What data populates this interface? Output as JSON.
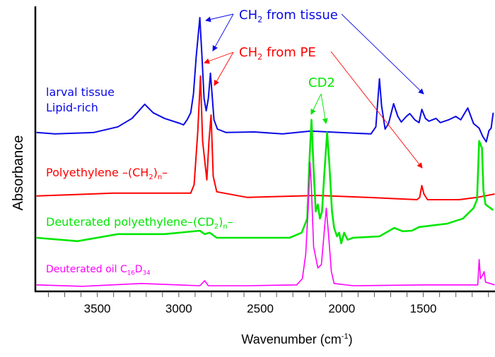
{
  "chart_data": {
    "type": "line",
    "xlabel": "Wavenumber (cm-1)",
    "xlabel_parts": [
      [
        "Wavenumber (cm",
        ""
      ],
      [
        "-1",
        "sup"
      ],
      [
        ")",
        ""
      ]
    ],
    "ylabel": "Absorbance",
    "xlim": [
      3880,
      1060
    ],
    "ylim": [
      0,
      101
    ],
    "x_reversed": true,
    "xticks": [
      3500,
      3000,
      2500,
      2000,
      1500
    ],
    "x_minor_step": 100,
    "grid": false,
    "series": [
      {
        "name": "larval tissue Lipid-rich",
        "label_lines": [
          [
            [
              "larval tissue",
              ""
            ]
          ],
          [
            [
              "Lipid-rich",
              ""
            ]
          ]
        ],
        "color": "#0a0ae6",
        "points": [
          [
            3873,
            56.3
          ],
          [
            3760,
            55.8
          ],
          [
            3522,
            56.3
          ],
          [
            3374,
            58.3
          ],
          [
            3287,
            61.3
          ],
          [
            3209,
            66.3
          ],
          [
            3157,
            63.3
          ],
          [
            3088,
            61.3
          ],
          [
            2992,
            59.5
          ],
          [
            2971,
            59
          ],
          [
            2949,
            60.8
          ],
          [
            2927,
            63.3
          ],
          [
            2910,
            70
          ],
          [
            2893,
            83.3
          ],
          [
            2871,
            97
          ],
          [
            2858,
            83.3
          ],
          [
            2845,
            68.3
          ],
          [
            2832,
            64
          ],
          [
            2819,
            68.3
          ],
          [
            2806,
            77.3
          ],
          [
            2797,
            70.8
          ],
          [
            2784,
            60.8
          ],
          [
            2763,
            57.5
          ],
          [
            2710,
            56.3
          ],
          [
            2537,
            56.5
          ],
          [
            2363,
            55.8
          ],
          [
            2190,
            56.8
          ],
          [
            2016,
            56.3
          ],
          [
            1821,
            55.8
          ],
          [
            1791,
            58.3
          ],
          [
            1778,
            68.3
          ],
          [
            1769,
            75.3
          ],
          [
            1756,
            65.8
          ],
          [
            1734,
            57.5
          ],
          [
            1713,
            59.5
          ],
          [
            1682,
            66.5
          ],
          [
            1656,
            62
          ],
          [
            1635,
            60
          ],
          [
            1604,
            62
          ],
          [
            1583,
            63
          ],
          [
            1552,
            60.8
          ],
          [
            1526,
            59.8
          ],
          [
            1509,
            64.5
          ],
          [
            1487,
            61.3
          ],
          [
            1465,
            60.3
          ],
          [
            1422,
            61.3
          ],
          [
            1396,
            59.8
          ],
          [
            1344,
            60.8
          ],
          [
            1301,
            62
          ],
          [
            1270,
            60.8
          ],
          [
            1227,
            65
          ],
          [
            1192,
            59.5
          ],
          [
            1157,
            57.8
          ],
          [
            1136,
            55
          ],
          [
            1114,
            53
          ],
          [
            1097,
            57
          ],
          [
            1084,
            57.8
          ],
          [
            1071,
            63.3
          ]
        ]
      },
      {
        "name": "Polyethylene –(CH2)n–",
        "label_lines": [
          [
            [
              "Polyethylene –(CH",
              ""
            ],
            [
              "2",
              "sub"
            ],
            [
              ")",
              ""
            ],
            [
              "n",
              "sub"
            ],
            [
              "–",
              ""
            ]
          ]
        ],
        "color": "#ff0000",
        "points": [
          [
            3873,
            33.8
          ],
          [
            3405,
            34.8
          ],
          [
            2927,
            34.8
          ],
          [
            2906,
            37.8
          ],
          [
            2884,
            56.3
          ],
          [
            2867,
            76.3
          ],
          [
            2854,
            53.3
          ],
          [
            2828,
            39.5
          ],
          [
            2815,
            53.3
          ],
          [
            2802,
            62.5
          ],
          [
            2789,
            40.8
          ],
          [
            2767,
            35.3
          ],
          [
            2580,
            33.3
          ],
          [
            2147,
            34
          ],
          [
            1843,
            33.3
          ],
          [
            1539,
            32.5
          ],
          [
            1522,
            33.3
          ],
          [
            1509,
            37.5
          ],
          [
            1496,
            34.5
          ],
          [
            1474,
            32.5
          ],
          [
            1279,
            32.5
          ],
          [
            1170,
            33.3
          ],
          [
            1062,
            34.5
          ]
        ]
      },
      {
        "name": "Deuterated polyethylene–(CD2)n–",
        "label_lines": [
          [
            [
              "Deuterated polyethylene–(CD",
              ""
            ],
            [
              "2",
              "sub"
            ],
            [
              ")",
              ""
            ],
            [
              "n",
              "sub"
            ],
            [
              "–",
              ""
            ]
          ]
        ],
        "color": "#00e600",
        "points": [
          [
            3873,
            19
          ],
          [
            3621,
            17.8
          ],
          [
            3374,
            20.3
          ],
          [
            3088,
            20.3
          ],
          [
            2871,
            21.5
          ],
          [
            2841,
            20.3
          ],
          [
            2810,
            20.8
          ],
          [
            2767,
            19
          ],
          [
            2580,
            19
          ],
          [
            2320,
            19
          ],
          [
            2246,
            20.8
          ],
          [
            2212,
            25.8
          ],
          [
            2199,
            45.8
          ],
          [
            2186,
            60.8
          ],
          [
            2173,
            43.3
          ],
          [
            2160,
            28.3
          ],
          [
            2147,
            30.8
          ],
          [
            2134,
            25.8
          ],
          [
            2121,
            28.3
          ],
          [
            2108,
            40.8
          ],
          [
            2090,
            56.3
          ],
          [
            2077,
            45.8
          ],
          [
            2060,
            28.3
          ],
          [
            2047,
            22.5
          ],
          [
            2029,
            19.5
          ],
          [
            2016,
            20.8
          ],
          [
            2003,
            17
          ],
          [
            1986,
            20.8
          ],
          [
            1964,
            18.3
          ],
          [
            1930,
            19
          ],
          [
            1769,
            19.5
          ],
          [
            1678,
            22.5
          ],
          [
            1626,
            21.3
          ],
          [
            1570,
            21.5
          ],
          [
            1526,
            22.8
          ],
          [
            1353,
            24
          ],
          [
            1257,
            25.8
          ],
          [
            1192,
            29.5
          ],
          [
            1170,
            32.5
          ],
          [
            1157,
            53.3
          ],
          [
            1140,
            50.8
          ],
          [
            1131,
            35.8
          ],
          [
            1118,
            30.8
          ],
          [
            1071,
            28.8
          ]
        ]
      },
      {
        "name": "Deuterated oil C16D34",
        "label_lines": [
          [
            [
              "Deuterated oil C",
              ""
            ],
            [
              "16",
              "sub"
            ],
            [
              "D",
              ""
            ],
            [
              "34",
              "sub"
            ]
          ]
        ],
        "color": "#ff00ff",
        "points": [
          [
            3873,
            2.3
          ],
          [
            3591,
            1.8
          ],
          [
            3231,
            2.8
          ],
          [
            2871,
            2
          ],
          [
            2841,
            3.8
          ],
          [
            2819,
            2
          ],
          [
            2580,
            2
          ],
          [
            2277,
            2.3
          ],
          [
            2242,
            4.5
          ],
          [
            2221,
            13.3
          ],
          [
            2203,
            33.3
          ],
          [
            2195,
            45.8
          ],
          [
            2186,
            35.8
          ],
          [
            2173,
            15.8
          ],
          [
            2147,
            8.3
          ],
          [
            2125,
            9.5
          ],
          [
            2108,
            20.8
          ],
          [
            2095,
            29.5
          ],
          [
            2082,
            20.8
          ],
          [
            2064,
            7
          ],
          [
            2047,
            2.8
          ],
          [
            1930,
            2
          ],
          [
            1496,
            2.3
          ],
          [
            1166,
            2.3
          ],
          [
            1157,
            11.3
          ],
          [
            1149,
            4.5
          ],
          [
            1136,
            5.8
          ],
          [
            1127,
            7
          ],
          [
            1118,
            3.3
          ],
          [
            1062,
            2.3
          ]
        ]
      }
    ],
    "annotations": [
      {
        "id": "ch2-tissue",
        "text": "CH2 from tissue",
        "parts": [
          [
            "CH",
            ""
          ],
          [
            "2",
            "sub"
          ],
          [
            " from tissue",
            ""
          ]
        ],
        "color": "#0a0ae6"
      },
      {
        "id": "ch2-pe",
        "text": "CH2 from PE",
        "parts": [
          [
            "CH",
            ""
          ],
          [
            "2",
            "sub"
          ],
          [
            " from PE",
            ""
          ]
        ],
        "color": "#ff0000"
      },
      {
        "id": "cd2",
        "text": "CD2",
        "parts": [
          [
            "CD",
            ""
          ],
          [
            "2",
            "sub"
          ]
        ],
        "color": "#00e600"
      }
    ]
  }
}
